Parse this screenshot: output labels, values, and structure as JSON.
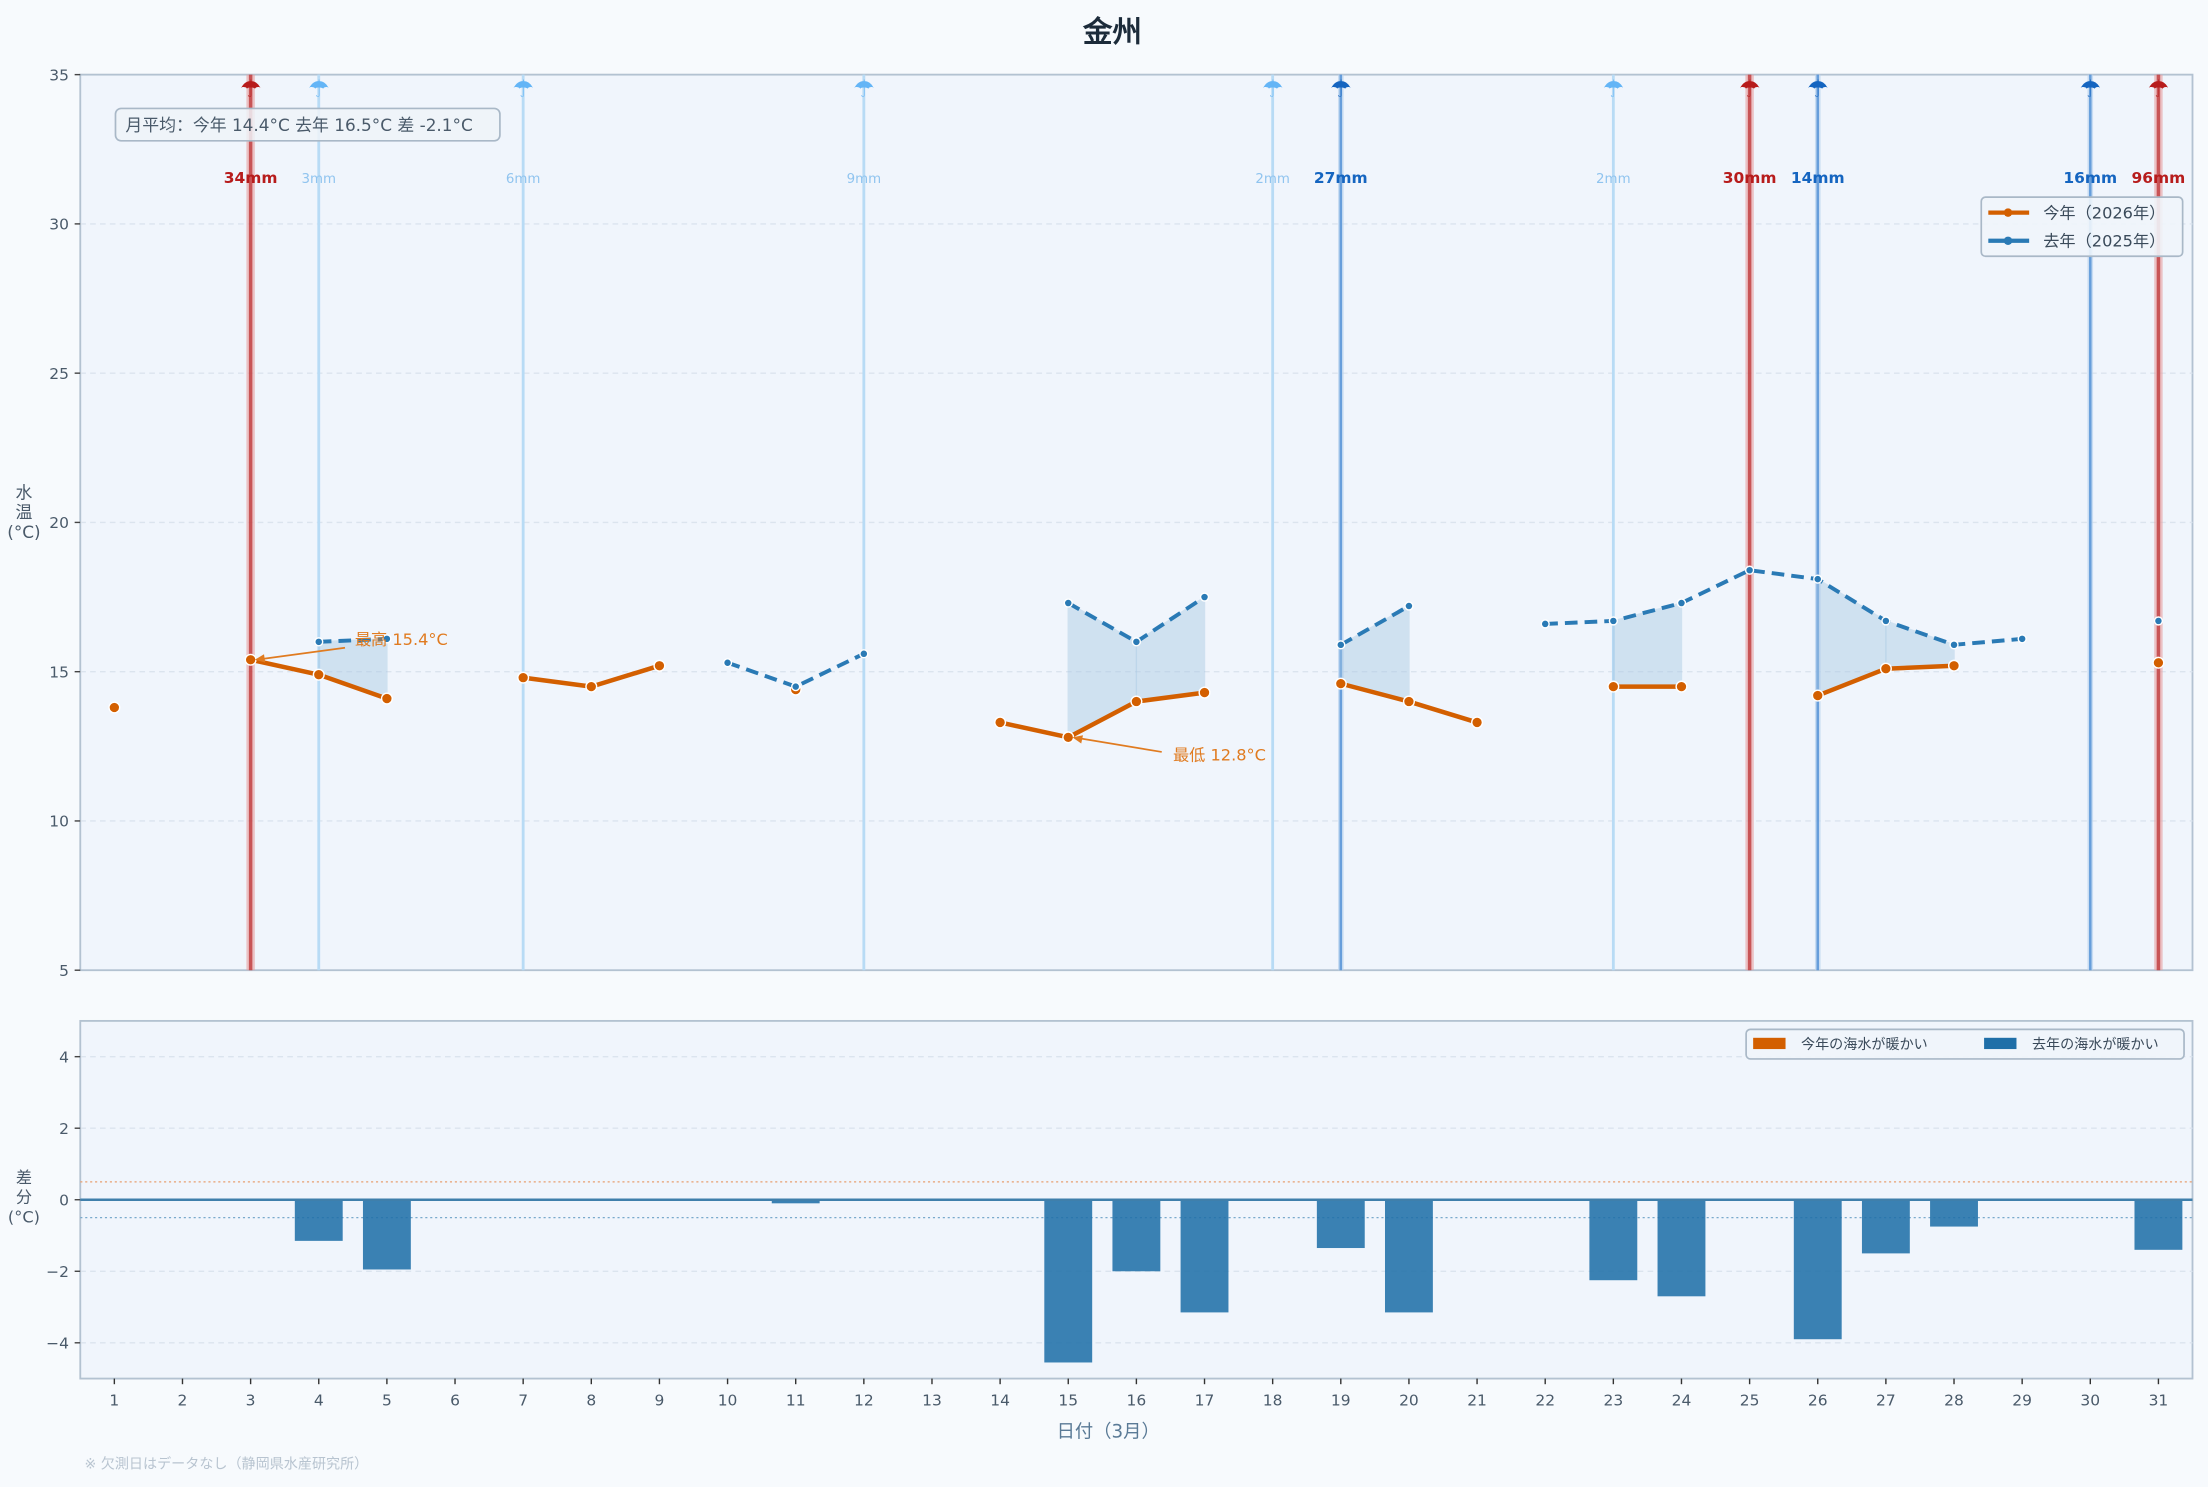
{
  "chart_data": [
    {
      "type": "line",
      "title": "金州",
      "xlabel": "日付（3月）",
      "ylabel": "水温(°C)",
      "ylabel_chars": [
        "水",
        "温",
        "(°C)"
      ],
      "xlim": [
        0.5,
        31.5
      ],
      "ylim": [
        5,
        35
      ],
      "yticks": [
        5,
        10,
        15,
        20,
        25,
        30,
        35
      ],
      "grid": true,
      "legend_position": "top-right",
      "x": [
        1,
        2,
        3,
        4,
        5,
        6,
        7,
        8,
        9,
        10,
        11,
        12,
        13,
        14,
        15,
        16,
        17,
        18,
        19,
        20,
        21,
        22,
        23,
        24,
        25,
        26,
        27,
        28,
        29,
        30,
        31
      ],
      "series": [
        {
          "name": "今年（2026年）",
          "color": "#d35f00",
          "values": [
            13.8,
            null,
            15.4,
            14.9,
            14.1,
            null,
            14.8,
            14.5,
            15.2,
            null,
            14.4,
            null,
            null,
            13.3,
            12.8,
            14.0,
            14.3,
            null,
            14.6,
            14.0,
            13.3,
            null,
            14.5,
            14.5,
            null,
            14.2,
            15.1,
            15.2,
            null,
            null,
            15.3
          ]
        },
        {
          "name": "去年（2025年）",
          "color": "#2a7ab5",
          "values": [
            null,
            null,
            null,
            16.0,
            16.1,
            null,
            null,
            null,
            null,
            15.3,
            14.5,
            15.6,
            null,
            null,
            17.3,
            16.0,
            17.5,
            null,
            15.9,
            17.2,
            null,
            16.6,
            16.7,
            17.3,
            18.4,
            18.1,
            16.7,
            15.9,
            16.1,
            null,
            16.7
          ]
        }
      ],
      "summary_box": "月平均：今年 14.4°C  去年 16.5°C  差 -2.1°C",
      "annotations": [
        {
          "text": "最高 15.4°C",
          "day": 3,
          "value": 15.4,
          "color": "#e07b20"
        },
        {
          "text": "最低 12.8°C",
          "day": 15,
          "value": 12.8,
          "color": "#e07b20"
        }
      ],
      "rain": [
        {
          "day": 3,
          "label": "34mm",
          "mm": 34
        },
        {
          "day": 4,
          "label": "3mm",
          "mm": 3
        },
        {
          "day": 7,
          "label": "6mm",
          "mm": 6
        },
        {
          "day": 12,
          "label": "9mm",
          "mm": 9
        },
        {
          "day": 18,
          "label": "2mm",
          "mm": 2
        },
        {
          "day": 19,
          "label": "27mm",
          "mm": 27
        },
        {
          "day": 23,
          "label": "2mm",
          "mm": 2
        },
        {
          "day": 25,
          "label": "30mm",
          "mm": 30
        },
        {
          "day": 26,
          "label": "14mm",
          "mm": 14
        },
        {
          "day": 30,
          "label": "16mm",
          "mm": 16
        },
        {
          "day": 31,
          "label": "96mm",
          "mm": 96
        }
      ],
      "rain_icon": "umbrella-icon",
      "rain_colors": {
        "heavy": "#b71c1c",
        "medium": "#1565c0",
        "light": "#64b5f6"
      }
    },
    {
      "type": "bar",
      "ylabel": "差分(°C)",
      "ylabel_chars": [
        "差",
        "分",
        "(°C)"
      ],
      "xlabel": "日付（3月）",
      "xlim": [
        0.5,
        31.5
      ],
      "ylim": [
        -5,
        5
      ],
      "yticks": [
        -4,
        -2,
        0,
        2,
        4
      ],
      "ytick_labels": [
        "−4",
        "−2",
        "0",
        "2",
        "4"
      ],
      "threshold_lines": [
        0.5,
        -0.5
      ],
      "legend_position": "top-right",
      "legend": [
        {
          "name": "今年の海水が暖かい",
          "color": "#d35f00"
        },
        {
          "name": "去年の海水が暖かい",
          "color": "#1f6fa8"
        }
      ],
      "x": [
        1,
        2,
        3,
        4,
        5,
        6,
        7,
        8,
        9,
        10,
        11,
        12,
        13,
        14,
        15,
        16,
        17,
        18,
        19,
        20,
        21,
        22,
        23,
        24,
        25,
        26,
        27,
        28,
        29,
        30,
        31
      ],
      "values": [
        null,
        null,
        null,
        -1.15,
        -1.95,
        null,
        null,
        null,
        null,
        null,
        -0.1,
        null,
        null,
        null,
        -4.55,
        -2.0,
        -3.15,
        null,
        -1.35,
        -3.15,
        null,
        null,
        -2.25,
        -2.7,
        null,
        -3.9,
        -1.5,
        -0.75,
        null,
        null,
        -1.4
      ]
    }
  ],
  "footer_note": "※ 欠測日はデータなし（静岡県水産研究所）"
}
